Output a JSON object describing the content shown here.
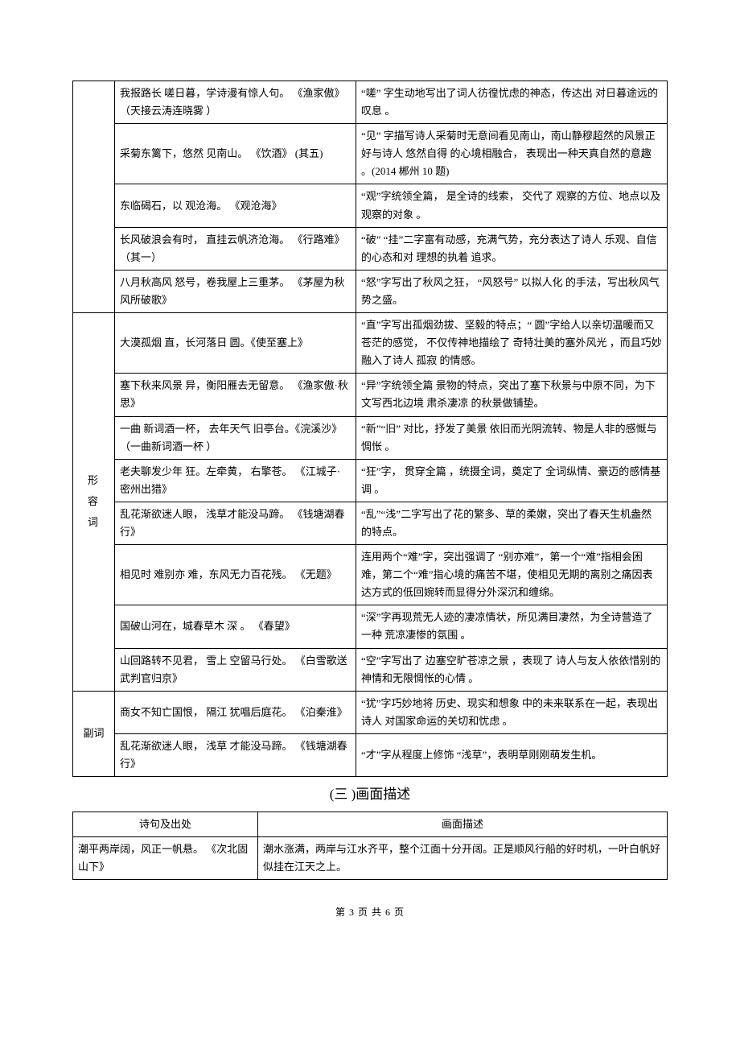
{
  "table1": {
    "section1": {
      "rows": [
        {
          "col2": "我报路长 嗟日暮，学诗漫有惊人句。 《渔家傲》（天接云涛连晓雾 ）",
          "col3": "“嗟” 字生动地写出了词人彷徨忧虑的神态，传达出    对日暮途远的叹息 。"
        },
        {
          "col2": "采菊东篱下，悠然 见南山。 《饮酒》 (其五)",
          "col3": "“见” 字描写诗人采菊时无意间看见南山，南山静穆超然的风景正好与诗人 悠然自得 的心境相融合， 表现出一种天真自然的意趣 。(2014 郴州 10 题)"
        },
        {
          "col2": "东临碣石，以 观沧海。 《观沧海》",
          "col3": "“观”字统领全篇， 是全诗的线索， 交代了 观察的方位、地点以及观察的对象 。"
        },
        {
          "col2": "长风破浪会有时， 直挂云帆济沧海。 《行路难》（其一）",
          "col3": "“破” “挂”二字富有动感，充满气势，充分表达了诗人 乐观、自信 的心态和对 理想的执着 追求。"
        },
        {
          "col2": "八月秋高风 怒号，卷我屋上三重茅。 《茅屋为秋风所破歌》",
          "col3": "“怒”字写出了秋风之狂， “风怒号” 以拟人化 的手法，写出秋风气势之盛。"
        }
      ]
    },
    "section2": {
      "category": "形容词",
      "rows": [
        {
          "col2": "大漠孤烟 直，长河落日 圆。《使至塞上》",
          "col3": "“直”字写出孤烟劲拔、坚毅的特点；“   圆”字给人以亲切温暖而又苍茫的感觉， 不仅传神地描绘了 奇特壮美的塞外风光 ，而且巧妙融入了诗人 孤寂 的情感。"
        },
        {
          "col2": "塞下秋来风景 异，衡阳雁去无留意。 《渔家傲·秋思》",
          "col3": "“异”字统领全篇 景物的特点，突出了塞下秋景与中原不同，为下文写西北边境 肃杀凄凉 的秋景做铺垫。"
        },
        {
          "col2": "一曲 新词酒一杯， 去年天气 旧亭台。《浣溪沙》（一曲新词酒一杯 ）",
          "col3": "“新”“旧” 对比，抒发了美景 依旧而光阴流转、物是人非的感慨与惆怅 。"
        },
        {
          "col2": "老夫聊发少年 狂。左牵黄， 右擎苍。 《江城子·密州出猎》",
          "col3": "“狂”字， 贯穿全篇 ，统摄全词，奠定了 全词纵情、豪迈的感情基调 。"
        },
        {
          "col2": "乱花渐欲迷人眼， 浅草才能没马蹄。 《钱塘湖春行》",
          "col3": "“乱”“浅”二字写出了花的繁多、草的柔嫩，突出了春天生机盎然的特点。"
        },
        {
          "col2": "相见时 难别亦 难，东风无力百花残。 《无题》",
          "col3": "连用两个“难”字，突出强调了 “别亦难”，第一个“难”指相会困难，第二个“难”指心境的痛苦不堪，使相见无期的离别之痛因表达方式的低回婉转而显得分外深沉和缠绵。"
        },
        {
          "col2": "国破山河在，城春草木 深 。 《春望》",
          "col3": "“深”字再现荒无人迹的凄凉情状，所见满目凄然，为全诗营造了一种 荒凉凄惨的氛围 。"
        },
        {
          "col2": "山回路转不见君， 雪上 空留马行处。 《白雪歌送武判官归京》",
          "col3": "“空”字写出了 边塞空旷苍凉之景 ，表现了 诗人与友人依依惜别的神情和无限惆怅的心情    。"
        }
      ]
    },
    "section3": {
      "category": "副词",
      "rows": [
        {
          "col2": "商女不知亡国恨， 隔江 犹唱后庭花。 《泊秦淮》",
          "col3": "“犹”字巧妙地将 历史、现实和想象 中的未来联系在一起，表现出诗人 对国家命运的关切和忧虑    。"
        },
        {
          "col2": "乱花渐欲迷人眼， 浅草 才能没马蹄。 《钱塘湖春行》",
          "col3": "“才”字从程度上修饰 “浅草”，表明草刚刚萌发生机。"
        }
      ]
    }
  },
  "section_title": "(三 )画面描述",
  "table2": {
    "headers": [
      "诗句及出处",
      "画面描述"
    ],
    "rows": [
      {
        "col1": "潮平两岸阔，风正一帆悬。     《次北固山下》",
        "col2": "潮水涨满，两岸与江水齐平，整个江面十分开阔。正是顺风行船的好时机，一叶白帆好似挂在江天之上。"
      }
    ]
  },
  "footer": "第 3 页 共 6 页"
}
